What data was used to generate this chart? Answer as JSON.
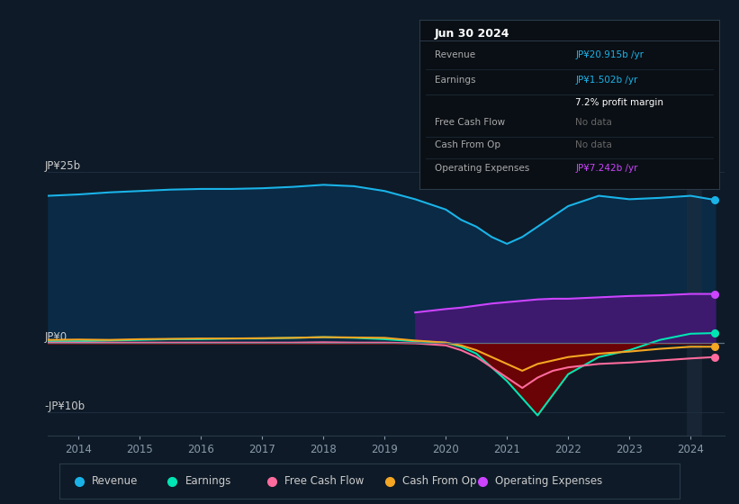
{
  "background_color": "#0e1a27",
  "plot_bg_color": "#0e1a27",
  "yticks_labels": [
    "JP¥25b",
    "JP¥0",
    "-JP¥10b"
  ],
  "ytick_values": [
    25,
    0,
    -10
  ],
  "xticks": [
    "2014",
    "2015",
    "2016",
    "2017",
    "2018",
    "2019",
    "2020",
    "2021",
    "2022",
    "2023",
    "2024"
  ],
  "years": [
    2013.5,
    2014.0,
    2014.5,
    2015.0,
    2015.5,
    2016.0,
    2016.5,
    2017.0,
    2017.5,
    2018.0,
    2018.5,
    2019.0,
    2019.5,
    2020.0,
    2020.25,
    2020.5,
    2020.75,
    2021.0,
    2021.25,
    2021.5,
    2021.75,
    2022.0,
    2022.5,
    2023.0,
    2023.5,
    2024.0,
    2024.4
  ],
  "revenue": [
    21.5,
    21.7,
    22.0,
    22.2,
    22.4,
    22.5,
    22.5,
    22.6,
    22.8,
    23.1,
    22.9,
    22.2,
    21.0,
    19.5,
    18.0,
    17.0,
    15.5,
    14.5,
    15.5,
    17.0,
    18.5,
    20.0,
    21.5,
    21.0,
    21.2,
    21.5,
    20.9
  ],
  "earnings": [
    0.3,
    0.3,
    0.4,
    0.5,
    0.6,
    0.6,
    0.7,
    0.7,
    0.8,
    0.9,
    0.8,
    0.6,
    0.3,
    0.1,
    -0.5,
    -1.5,
    -3.5,
    -5.5,
    -8.0,
    -10.5,
    -7.5,
    -4.5,
    -2.0,
    -1.0,
    0.5,
    1.4,
    1.5
  ],
  "free_cash_flow": [
    0.1,
    0.1,
    0.1,
    0.1,
    0.1,
    0.1,
    0.1,
    0.1,
    0.1,
    0.15,
    0.1,
    0.1,
    0.0,
    -0.3,
    -1.0,
    -2.0,
    -3.5,
    -5.0,
    -6.5,
    -5.0,
    -4.0,
    -3.5,
    -3.0,
    -2.8,
    -2.5,
    -2.2,
    -2.0
  ],
  "cash_from_op": [
    0.5,
    0.55,
    0.5,
    0.6,
    0.65,
    0.7,
    0.7,
    0.75,
    0.8,
    0.9,
    0.85,
    0.8,
    0.4,
    0.1,
    -0.3,
    -1.0,
    -2.0,
    -3.0,
    -4.0,
    -3.0,
    -2.5,
    -2.0,
    -1.5,
    -1.2,
    -0.8,
    -0.5,
    -0.5
  ],
  "op_expenses_years": [
    2019.5,
    2020.0,
    2020.25,
    2020.5,
    2020.75,
    2021.0,
    2021.25,
    2021.5,
    2021.75,
    2022.0,
    2022.5,
    2023.0,
    2023.5,
    2024.0,
    2024.4
  ],
  "op_expenses_vals": [
    4.5,
    5.0,
    5.2,
    5.5,
    5.8,
    6.0,
    6.2,
    6.4,
    6.5,
    6.5,
    6.7,
    6.9,
    7.0,
    7.2,
    7.2
  ],
  "revenue_color": "#1ab3e8",
  "revenue_fill": "#0d3a5c",
  "earnings_color": "#00e5b4",
  "free_cash_flow_color": "#ff6b9d",
  "cash_from_op_color": "#f5a623",
  "op_expenses_color": "#cc44ff",
  "op_expenses_fill": "#3d1a6e",
  "earnings_neg_fill": "#7a0000",
  "legend_items": [
    {
      "label": "Revenue",
      "color": "#1ab3e8"
    },
    {
      "label": "Earnings",
      "color": "#00e5b4"
    },
    {
      "label": "Free Cash Flow",
      "color": "#ff6b9d"
    },
    {
      "label": "Cash From Op",
      "color": "#f5a623"
    },
    {
      "label": "Operating Expenses",
      "color": "#cc44ff"
    }
  ],
  "tooltip": {
    "title": "Jun 30 2024",
    "rows": [
      {
        "label": "Revenue",
        "value": "JP¥20.915b /yr",
        "value_color": "#1ab3e8",
        "label_color": "#aaaaaa"
      },
      {
        "label": "Earnings",
        "value": "JP¥1.502b /yr",
        "value_color": "#1ab3e8",
        "label_color": "#aaaaaa"
      },
      {
        "label": "",
        "value": "7.2% profit margin",
        "value_color": "#ffffff",
        "label_color": "#aaaaaa"
      },
      {
        "label": "Free Cash Flow",
        "value": "No data",
        "value_color": "#666666",
        "label_color": "#aaaaaa"
      },
      {
        "label": "Cash From Op",
        "value": "No data",
        "value_color": "#666666",
        "label_color": "#aaaaaa"
      },
      {
        "label": "Operating Expenses",
        "value": "JP¥7.242b /yr",
        "value_color": "#cc44ff",
        "label_color": "#aaaaaa"
      }
    ]
  }
}
